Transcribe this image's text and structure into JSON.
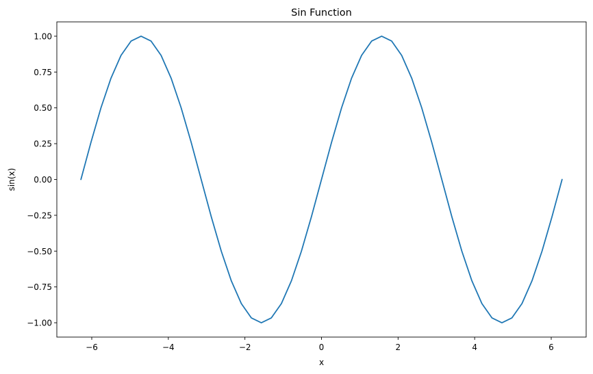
{
  "chart_data": {
    "type": "line",
    "title": "Sin Function",
    "xlabel": "x",
    "ylabel": "sin(x)",
    "xlim": [
      -6.912,
      6.912
    ],
    "ylim": [
      -1.1,
      1.1
    ],
    "x_ticks": [
      -6,
      -4,
      -2,
      0,
      2,
      4,
      6
    ],
    "x_tick_labels": [
      "−6",
      "−4",
      "−2",
      "0",
      "2",
      "4",
      "6"
    ],
    "y_ticks": [
      -1.0,
      -0.75,
      -0.5,
      -0.25,
      0.0,
      0.25,
      0.5,
      0.75,
      1.0
    ],
    "y_tick_labels": [
      "−1.00",
      "−0.75",
      "−0.50",
      "−0.25",
      "0.00",
      "0.25",
      "0.50",
      "0.75",
      "1.00"
    ],
    "grid": false,
    "legend": "none",
    "series": [
      {
        "color": "#1f77b4",
        "x": [
          -6.283,
          -6.021,
          -5.76,
          -5.498,
          -5.236,
          -4.974,
          -4.712,
          -4.451,
          -4.189,
          -3.927,
          -3.665,
          -3.403,
          -3.142,
          -2.88,
          -2.618,
          -2.356,
          -2.094,
          -1.833,
          -1.571,
          -1.309,
          -1.047,
          -0.785,
          -0.524,
          -0.262,
          0.0,
          0.262,
          0.524,
          0.785,
          1.047,
          1.309,
          1.571,
          1.833,
          2.094,
          2.356,
          2.618,
          2.88,
          3.142,
          3.403,
          3.665,
          3.927,
          4.189,
          4.451,
          4.712,
          4.974,
          5.236,
          5.498,
          5.76,
          6.021,
          6.283
        ],
        "y": [
          0.0,
          0.259,
          0.5,
          0.707,
          0.866,
          0.966,
          1.0,
          0.966,
          0.866,
          0.707,
          0.5,
          0.259,
          0.0,
          -0.259,
          -0.5,
          -0.707,
          -0.866,
          -0.966,
          -1.0,
          -0.966,
          -0.866,
          -0.707,
          -0.5,
          -0.259,
          0.0,
          0.259,
          0.5,
          0.707,
          0.866,
          0.966,
          1.0,
          0.966,
          0.866,
          0.707,
          0.5,
          0.259,
          0.0,
          -0.259,
          -0.5,
          -0.707,
          -0.866,
          -0.966,
          -1.0,
          -0.966,
          -0.866,
          -0.707,
          -0.5,
          -0.259,
          0.0
        ]
      }
    ]
  }
}
